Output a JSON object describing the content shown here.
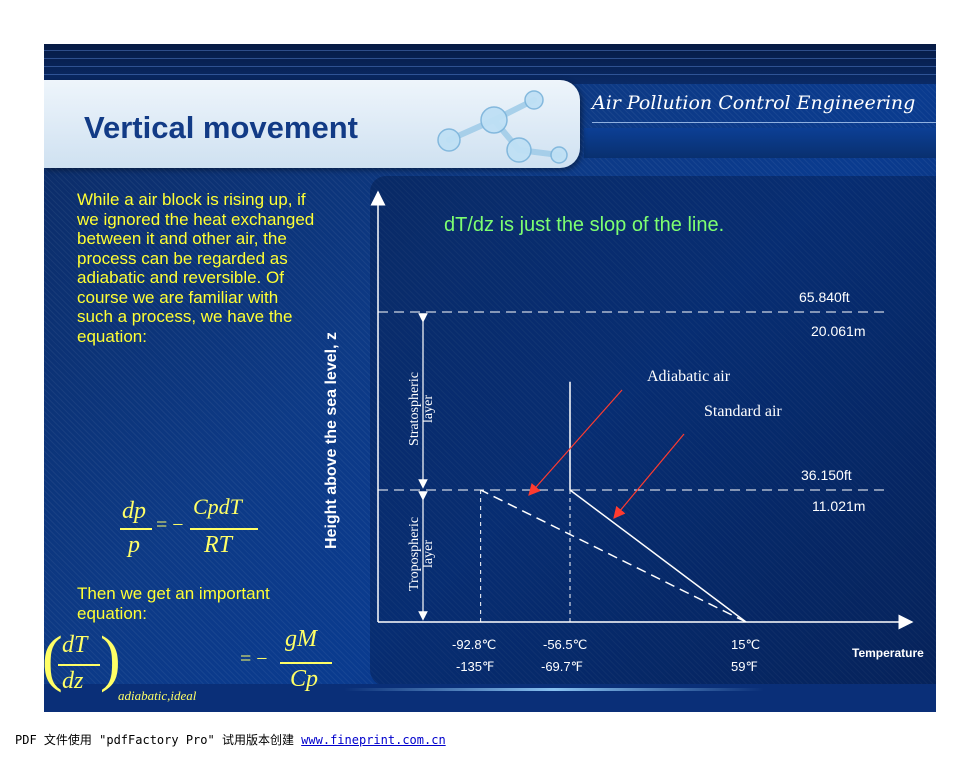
{
  "header": {
    "title": "Vertical movement",
    "brand": "Air Pollution Control Engineering",
    "molecule_icon": "molecule-icon"
  },
  "body": {
    "paragraph": "While a air block is rising up, if we ignored the heat exchanged between it and other air, the process can be regarded as adiabatic and reversible. Of course we are familiar with such a process, we have the equation:",
    "equation1": {
      "lhs_num": "dp",
      "lhs_den": "p",
      "rhs_sign": "= −",
      "rhs_num": "CpdT",
      "rhs_den": "RT"
    },
    "then_text": "Then we get an important equation:",
    "equation2": {
      "lhs_num": "dT",
      "lhs_den": "dz",
      "subscript": "adiabatic,ideal",
      "rhs_sign": "= −",
      "rhs_num": "gM",
      "rhs_den": "Cp"
    }
  },
  "chart_data": {
    "type": "line",
    "note": "dT/dz is just the slop of the line.",
    "ylabel": "Height above the sea level,  z",
    "xlabel": "Temperature",
    "heights": [
      {
        "ft": "65.840ft",
        "m": "20.061m"
      },
      {
        "ft": "36.150ft",
        "m": "11.021m"
      }
    ],
    "x_ticks": [
      {
        "c": "-92.8℃",
        "f": "-135℉"
      },
      {
        "c": "-56.5℃",
        "f": "-69.7℉"
      },
      {
        "c": "15℃",
        "f": "59℉"
      }
    ],
    "layers": [
      "Stratospheric layer",
      "Tropospheric layer"
    ],
    "series": [
      {
        "name": "Standard air",
        "style": "solid",
        "points": [
          [
            15,
            0
          ],
          [
            -56.5,
            11.021
          ],
          [
            -56.5,
            20.061
          ]
        ]
      },
      {
        "name": "Adiabatic air",
        "style": "dashed",
        "points": [
          [
            15,
            0
          ],
          [
            -92.8,
            11.021
          ]
        ]
      }
    ]
  },
  "footer": {
    "text": "PDF 文件使用 \"pdfFactory Pro\" 试用版本创建 ",
    "link": "www.fineprint.com.cn"
  },
  "colors": {
    "body_text": "#ffff33",
    "note": "#7dff70",
    "title": "#123b86",
    "arrow": "#ff3b2f"
  }
}
